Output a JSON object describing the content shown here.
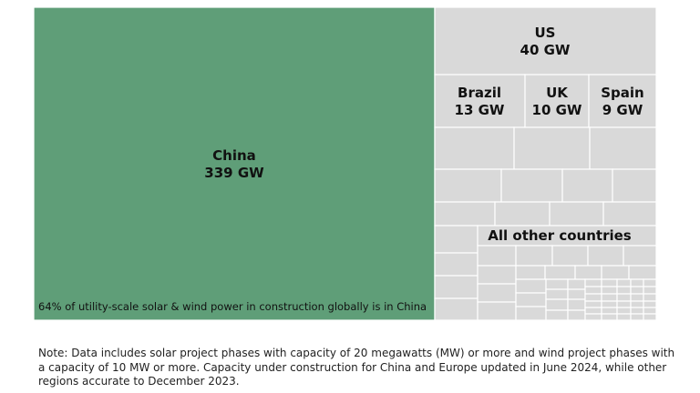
{
  "chart_data": {
    "type": "treemap",
    "unit": "GW",
    "items": [
      {
        "name": "China",
        "value": 339,
        "label": "China",
        "value_label": "339 GW",
        "color": "#5f9e78"
      },
      {
        "name": "US",
        "value": 40,
        "label": "US",
        "value_label": "40 GW",
        "color": "#d9d9d9"
      },
      {
        "name": "Brazil",
        "value": 13,
        "label": "Brazil",
        "value_label": "13 GW",
        "color": "#d9d9d9"
      },
      {
        "name": "UK",
        "value": 10,
        "label": "UK",
        "value_label": "10 GW",
        "color": "#d9d9d9"
      },
      {
        "name": "Spain",
        "value": 9,
        "label": "Spain",
        "value_label": "9 GW",
        "color": "#d9d9d9"
      }
    ],
    "other_label": "All other countries",
    "annotation": "64% of utility-scale solar & wind power in construction globally is in China"
  },
  "note": "Note: Data includes solar project phases with capacity of 20 megawatts (MW) or more and wind project phases with a capacity of 10 MW or more. Capacity under construction for China and Europe updated in June 2024, while other regions accurate to December 2023."
}
